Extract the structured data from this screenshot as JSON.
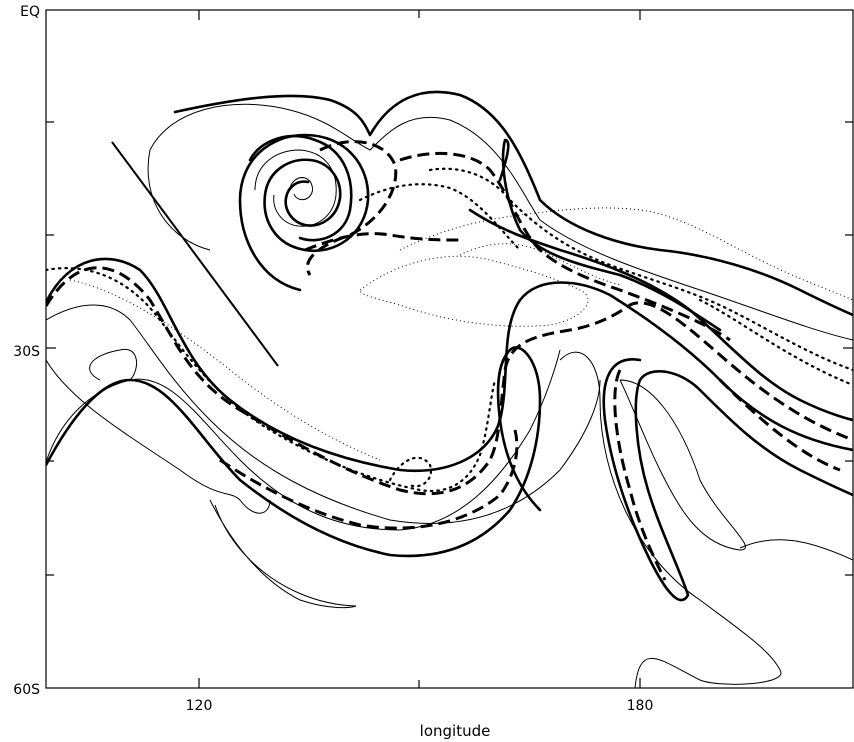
{
  "figure": {
    "xlabel": "longitude",
    "x_ticks": [
      "120",
      "180"
    ],
    "y_ticks": [
      "EQ",
      "30S",
      "60S"
    ]
  }
}
